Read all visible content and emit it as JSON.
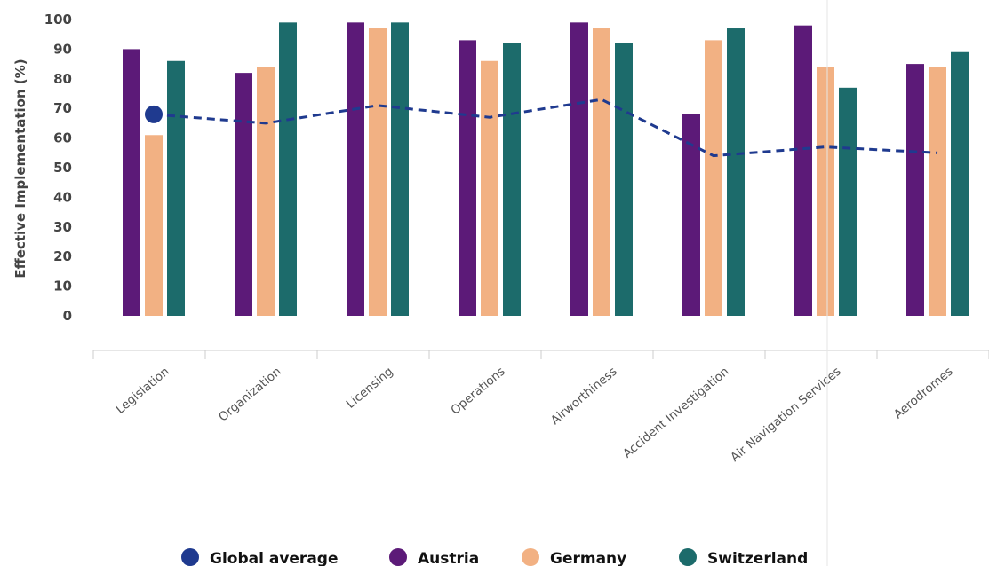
{
  "chart_data": {
    "type": "bar",
    "ylabel": "Effective Implementation (%)",
    "ylim": [
      0,
      100
    ],
    "yticks": [
      0,
      10,
      20,
      30,
      40,
      50,
      60,
      70,
      80,
      90,
      100
    ],
    "categories": [
      "Legislation",
      "Organization",
      "Licensing",
      "Operations",
      "Airworthiness",
      "Accident Investigation",
      "Air Navigation Services",
      "Aerodromes"
    ],
    "series": [
      {
        "name": "Austria",
        "color": "#5c1a78",
        "values": [
          90,
          82,
          99,
          93,
          99,
          68,
          98,
          85
        ]
      },
      {
        "name": "Germany",
        "color": "#f2b183",
        "values": [
          61,
          84,
          97,
          86,
          97,
          93,
          84,
          84
        ]
      },
      {
        "name": "Switzerland",
        "color": "#1c6b6b",
        "values": [
          86,
          99,
          99,
          92,
          92,
          97,
          77,
          89
        ]
      }
    ],
    "line_series": {
      "name": "Global average",
      "color": "#1f3a8f",
      "values": [
        68,
        65,
        71,
        67,
        73,
        54,
        57,
        55
      ]
    },
    "legend": {
      "position": "bottom",
      "items": [
        {
          "label": "Global average",
          "color": "#1f3a8f"
        },
        {
          "label": "Austria",
          "color": "#5c1a78"
        },
        {
          "label": "Germany",
          "color": "#f2b183"
        },
        {
          "label": "Switzerland",
          "color": "#1c6b6b"
        }
      ]
    },
    "grid": false
  }
}
